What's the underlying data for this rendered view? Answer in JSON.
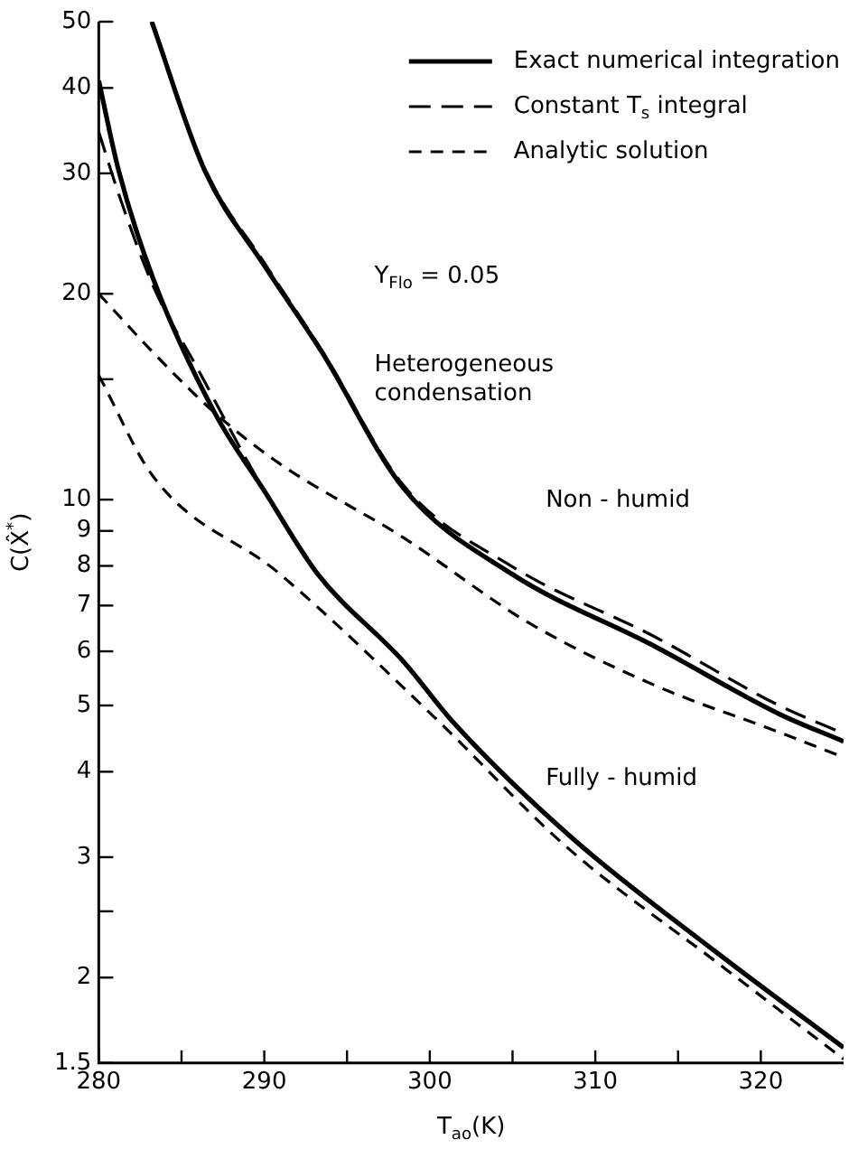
{
  "chart_data": {
    "type": "line",
    "xlabel": "T$_{ao}$(K)",
    "ylabel": "C(X̂$^{*}$)",
    "log": "y",
    "legend": "top right",
    "xlim": [
      280,
      325
    ],
    "ylim": [
      1.5,
      50
    ],
    "xticks": [
      280,
      {
        "value": 285,
        "label": null
      },
      290,
      {
        "value": 295,
        "label": null
      },
      300,
      {
        "value": 305,
        "label": null
      },
      310,
      {
        "value": 315,
        "label": null
      },
      320
    ],
    "yticks": [
      1.5,
      2,
      {
        "value": 2.5,
        "label": null
      },
      3,
      4,
      5,
      6,
      7,
      8,
      9,
      10,
      {
        "value": 15,
        "label": null
      },
      20,
      30,
      40,
      50
    ],
    "series": [
      {
        "name": "Exact numerical integration",
        "color": "#000000",
        "line_style": "solid",
        "x": [
          283.2,
          286.4,
          290,
          293.5,
          298.4,
          304.9,
          313.6,
          321.1,
          325
        ],
        "values": [
          50,
          30.3,
          22,
          16.4,
          10.4,
          7.8,
          6.1,
          4.86,
          4.43
        ]
      },
      {
        "name": "Constant T$_{s}$ integral",
        "color": "#000000",
        "line_style": "dashed",
        "x": [
          283.2,
          286.4,
          290,
          293.5,
          298.4,
          304.9,
          313.6,
          321.1,
          325
        ],
        "values": [
          50,
          30.5,
          22.2,
          16.5,
          10.5,
          8.0,
          6.3,
          5.0,
          4.55
        ]
      },
      {
        "name": "Analytic solution",
        "color": "#000000",
        "line_style": "dashed",
        "x": [
          280,
          283.3,
          287,
          290.9,
          298.4,
          306,
          313.6,
          321.1,
          325
        ],
        "values": [
          20,
          16.4,
          13.4,
          11.3,
          8.8,
          6.6,
          5.35,
          4.57,
          4.2
        ]
      },
      {
        "color": "#000000",
        "line_style": "solid",
        "x": [
          280,
          281.2,
          283.3,
          287,
          290,
          293.2,
          298.4,
          301.5,
          308.6,
          317.4,
          325
        ],
        "values": [
          41,
          30.3,
          21,
          13.4,
          10.3,
          7.8,
          5.8,
          4.7,
          3.2,
          2.17,
          1.58
        ]
      },
      {
        "color": "#000000",
        "line_style": "dashed",
        "x": [
          280,
          281.2,
          283.3,
          286,
          290,
          293.2
        ],
        "values": [
          34.5,
          28,
          20.5,
          15.5,
          10.3,
          7.8
        ]
      },
      {
        "color": "#000000",
        "line_style": "dashed",
        "x": [
          280,
          283.3,
          290.9,
          300.3,
          308.3,
          317.4,
          325
        ],
        "values": [
          15.2,
          10.8,
          7.8,
          4.8,
          3.1,
          2.1,
          1.52
        ]
      }
    ],
    "annotations": [
      "Y$_{Flo}$ = 0.05",
      "Heterogeneous condensation",
      "Non - humid",
      "Fully - humid"
    ]
  }
}
